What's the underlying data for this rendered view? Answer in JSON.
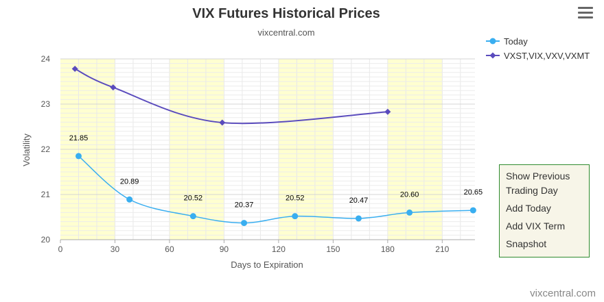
{
  "menu": {
    "icon": "hamburger-menu-icon"
  },
  "options": [
    "Show Previous Trading Day",
    "Add Today",
    "Add VIX Term",
    "Snapshot"
  ],
  "chart_data": {
    "type": "line",
    "title": "VIX Futures Historical Prices",
    "subtitle": "vixcentral.com",
    "xlabel": "Days to Expiration",
    "ylabel": "Volatility",
    "xlim": [
      0,
      228
    ],
    "ylim": [
      20,
      24
    ],
    "x_ticks": [
      0,
      30,
      60,
      90,
      120,
      150,
      180,
      210
    ],
    "y_ticks": [
      20,
      21,
      22,
      23,
      24
    ],
    "band_color": "#ffffd0",
    "bands": [
      [
        0,
        30
      ],
      [
        60,
        90
      ],
      [
        120,
        150
      ],
      [
        180,
        210
      ]
    ],
    "legend_position": "top-right",
    "credit": "vixcentral.com",
    "series": [
      {
        "name": "Today",
        "color": "#39aef0",
        "marker": "circle",
        "show_labels": true,
        "points": [
          {
            "x": 10,
            "y": 21.85
          },
          {
            "x": 38,
            "y": 20.89
          },
          {
            "x": 73,
            "y": 20.52
          },
          {
            "x": 101,
            "y": 20.37
          },
          {
            "x": 129,
            "y": 20.52
          },
          {
            "x": 164,
            "y": 20.47
          },
          {
            "x": 192,
            "y": 20.6
          },
          {
            "x": 227,
            "y": 20.65
          }
        ]
      },
      {
        "name": "VXST,VIX,VXV,VXMT",
        "color": "#5a4bbd",
        "marker": "diamond",
        "show_labels": false,
        "points": [
          {
            "x": 8,
            "y": 23.78
          },
          {
            "x": 29,
            "y": 23.37
          },
          {
            "x": 89,
            "y": 22.59
          },
          {
            "x": 180,
            "y": 22.83
          }
        ]
      }
    ]
  }
}
